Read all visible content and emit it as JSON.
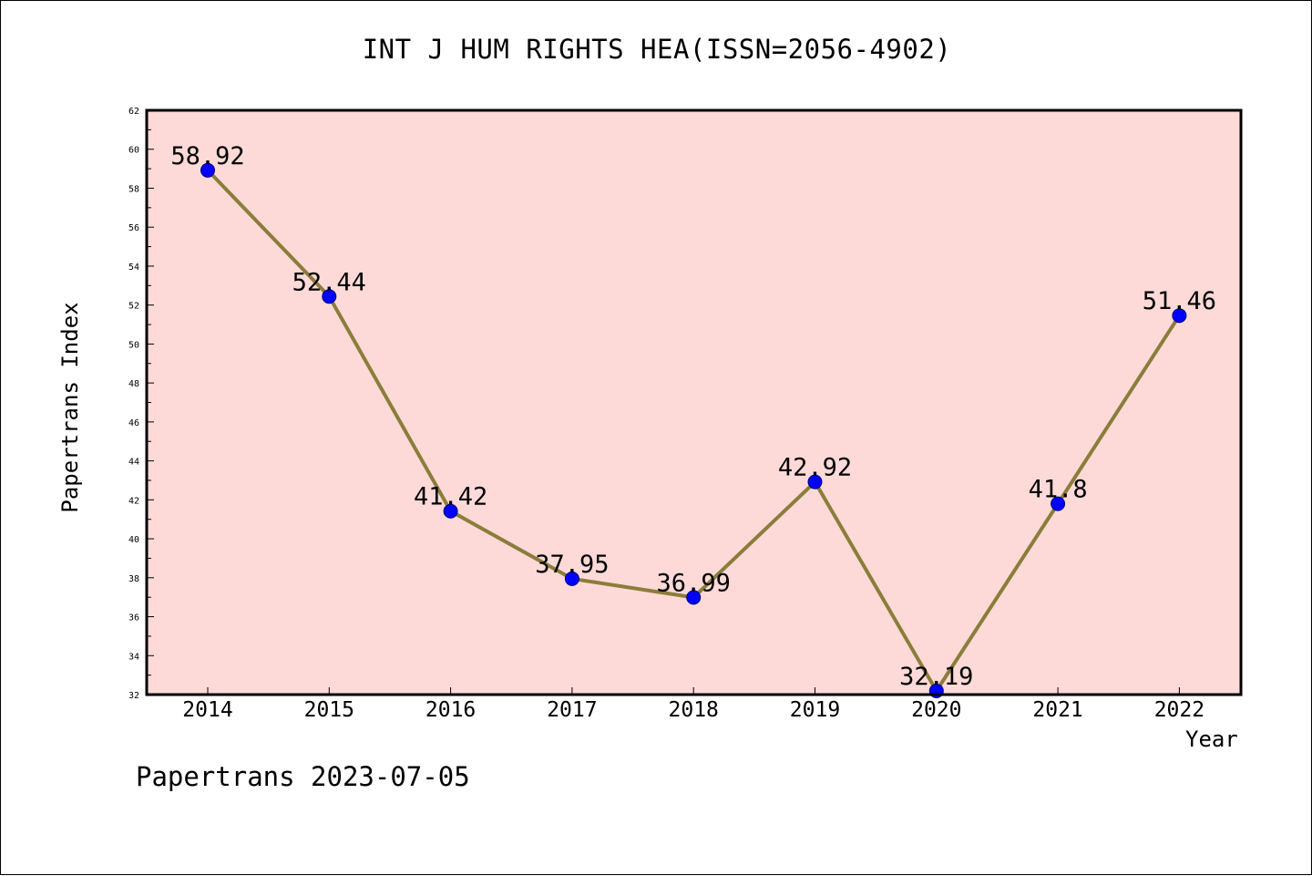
{
  "chart_data": {
    "type": "line",
    "title": "INT J HUM RIGHTS HEA(ISSN=2056-4902)",
    "xlabel": "Year",
    "ylabel": "Papertrans Index",
    "categories": [
      "2014",
      "2015",
      "2016",
      "2017",
      "2018",
      "2019",
      "2020",
      "2021",
      "2022"
    ],
    "series": [
      {
        "values": [
          58.92,
          52.44,
          41.42,
          37.95,
          36.99,
          42.92,
          32.19,
          41.8,
          51.46
        ],
        "labels": [
          "58.92",
          "52.44",
          "41.42",
          "37.95",
          "36.99",
          "42.92",
          "32.19",
          "41.8",
          "51.46"
        ]
      }
    ],
    "ylim": [
      32,
      62
    ],
    "yticks": [
      "32",
      "34",
      "36",
      "38",
      "40",
      "42",
      "44",
      "46",
      "48",
      "50",
      "52",
      "54",
      "56",
      "58",
      "60",
      "62"
    ],
    "grid": false,
    "legend": "none",
    "colors": {
      "plot_background": "#fddad8",
      "line": "#8b7d3a",
      "marker": "#0000ff",
      "axes": "#000000"
    }
  },
  "footer": {
    "text": "Papertrans 2023-07-05"
  }
}
